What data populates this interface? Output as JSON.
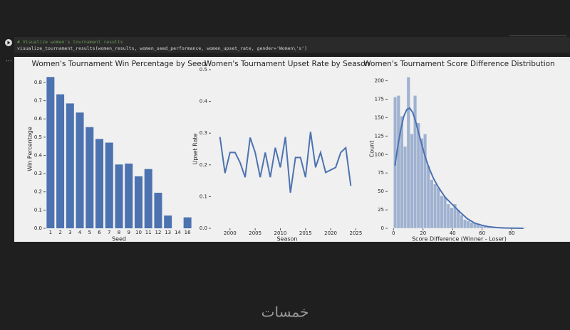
{
  "code": {
    "comment": "# Visualize women's tournament results",
    "call": "visualize_tournament_results(women_results, women_seed_performance, women_upset_rate, gender='Women\\'s')"
  },
  "watermark": "خمسات",
  "chart_data": [
    {
      "type": "bar",
      "title": "Women's Tournament Win Percentage by Seed",
      "x_label": "Seed",
      "y_label": "Win Percentage",
      "color": "#4c72b0",
      "categories": [
        "1",
        "2",
        "3",
        "4",
        "5",
        "6",
        "7",
        "8",
        "9",
        "10",
        "11",
        "12",
        "13",
        "14",
        "16"
      ],
      "values": [
        0.83,
        0.735,
        0.685,
        0.635,
        0.555,
        0.49,
        0.47,
        0.35,
        0.355,
        0.285,
        0.325,
        0.195,
        0.07,
        0,
        0.06
      ],
      "ylim": [
        0,
        0.87
      ],
      "yticks": [
        {
          "value": 0,
          "label": "0.0"
        },
        0.1,
        0.2,
        0.3,
        0.4,
        0.5,
        0.6,
        0.7,
        0.8
      ]
    },
    {
      "type": "line",
      "title": "Women's Tournament Upset Rate by Season",
      "x_label": "Season",
      "y_label": "Upset Rate",
      "color": "#4c72b0",
      "x": [
        1998,
        1999,
        2000,
        2001,
        2002,
        2003,
        2004,
        2005,
        2006,
        2007,
        2008,
        2009,
        2010,
        2011,
        2012,
        2013,
        2014,
        2015,
        2016,
        2017,
        2018,
        2019,
        2021,
        2022,
        2023,
        2024
      ],
      "values": [
        0.288,
        0.174,
        0.239,
        0.239,
        0.207,
        0.161,
        0.286,
        0.239,
        0.161,
        0.239,
        0.161,
        0.254,
        0.192,
        0.288,
        0.112,
        0.223,
        0.223,
        0.161,
        0.304,
        0.192,
        0.239,
        0.176,
        0.192,
        0.239,
        0.254,
        0.134
      ],
      "xlim": [
        1996.2,
        2026.5
      ],
      "xticks": [
        2000,
        2005,
        2010,
        2015,
        2020,
        2025
      ],
      "ylim": [
        0,
        0.5
      ],
      "yticks": [
        {
          "value": 0,
          "label": "0.0"
        },
        0.1,
        0.2,
        0.3,
        0.4,
        0.5
      ]
    },
    {
      "type": "histogram",
      "title": "Women's Tournament Score Difference Distribution",
      "x_label": "Score Difference (Winner - Loser)",
      "y_label": "Count",
      "color": "#4c72b0",
      "bar_alpha": 0.5,
      "bins": [
        0,
        2.25,
        4.5,
        6.75,
        9,
        11.25,
        13.5,
        15.75,
        18,
        20.25,
        22.5,
        24.75,
        27,
        29.25,
        31.5,
        33.75,
        36,
        38.25,
        40.5,
        42.75,
        45,
        47.25,
        49.5,
        51.75,
        54,
        56.25,
        58.5,
        60.75,
        63,
        65.25,
        67.5,
        69.75,
        72,
        74.25,
        76.5,
        78.75,
        81,
        83.25,
        85.5,
        87.75,
        90
      ],
      "counts": [
        178,
        180,
        152,
        111,
        205,
        128,
        180,
        143,
        122,
        128,
        85,
        66,
        60,
        55,
        44,
        43,
        33,
        28,
        33,
        25,
        18,
        12,
        10,
        8,
        7,
        5,
        3,
        3,
        2,
        1,
        1,
        1,
        1,
        0,
        1,
        0,
        1,
        0,
        1,
        1
      ],
      "kde": {
        "x": [
          1,
          3,
          5,
          7,
          9,
          11,
          13,
          15,
          18,
          21,
          24,
          27,
          30,
          35,
          40,
          45,
          50,
          55,
          60,
          65,
          70,
          75,
          80,
          85,
          88
        ],
        "y": [
          85,
          112,
          135,
          152,
          161,
          163,
          157,
          145,
          122,
          100,
          82,
          68,
          57,
          42,
          32,
          22,
          13,
          7,
          4,
          2,
          1,
          0.5,
          0.3,
          0.1,
          0
        ]
      },
      "xlim": [
        -4,
        93
      ],
      "xticks": [
        0,
        20,
        40,
        60,
        80
      ],
      "ylim": [
        0,
        215
      ],
      "yticks": [
        0,
        25,
        50,
        75,
        100,
        125,
        150,
        175,
        200
      ]
    }
  ]
}
